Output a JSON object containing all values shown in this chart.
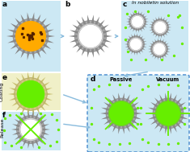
{
  "bg_color": "#ffffff",
  "panel_bg_blue": "#cce8f4",
  "panel_bg_yellow": "#f0f0c8",
  "dashed_box_color": "#4488cc",
  "arrow_color": "#88bbdd",
  "spike_color": "#888888",
  "spike_body": "#aaaaaa",
  "green_fill": "#66ee00",
  "orange_fill": "#ffaa00",
  "dark_dots": "#552200",
  "white_fill": "#ffffff",
  "text_passive": "Passive",
  "text_vacuum": "Vacuum",
  "text_coating": "Coating",
  "text_release": "Release",
  "text_nobiletin": "In nobiletin solution",
  "label_fontsize": 6.5,
  "small_fontsize": 4.5
}
